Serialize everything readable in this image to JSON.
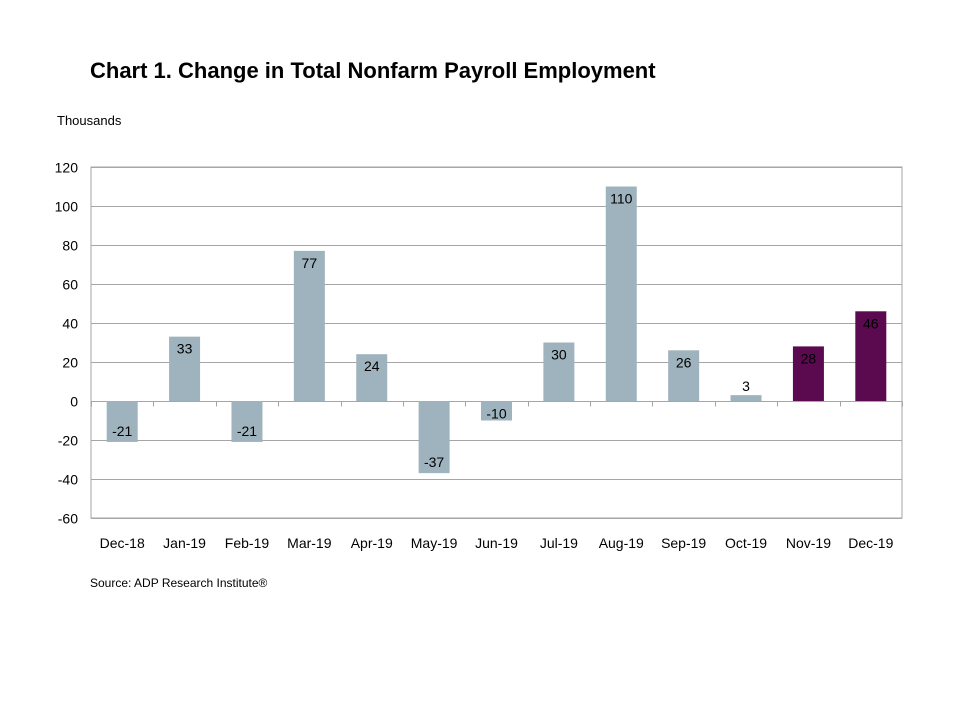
{
  "title": "Chart 1. Change in Total Nonfarm Payroll Employment",
  "units_label": "Thousands",
  "source": "Source: ADP Research Institute®",
  "colors": {
    "regular_bar": "#9fb3be",
    "highlight_bar": "#5b0a4f",
    "gridline": "#a6a6a6",
    "label_on_dark": "#ffffff"
  },
  "chart_data": {
    "type": "bar",
    "categories": [
      "Dec-18",
      "Jan-19",
      "Feb-19",
      "Mar-19",
      "Apr-19",
      "May-19",
      "Jun-19",
      "Jul-19",
      "Aug-19",
      "Sep-19",
      "Oct-19",
      "Nov-19",
      "Dec-19"
    ],
    "values": [
      -21,
      33,
      -21,
      77,
      24,
      -37,
      -10,
      30,
      110,
      26,
      3,
      28,
      46
    ],
    "highlighted_categories": [
      "Nov-19",
      "Dec-19"
    ],
    "ylim": [
      -60,
      120
    ],
    "yticks": [
      120,
      100,
      80,
      60,
      40,
      20,
      0,
      -20,
      -40,
      -60
    ],
    "ylabel": "Thousands",
    "xlabel": "",
    "grid": true,
    "legend": "none"
  }
}
